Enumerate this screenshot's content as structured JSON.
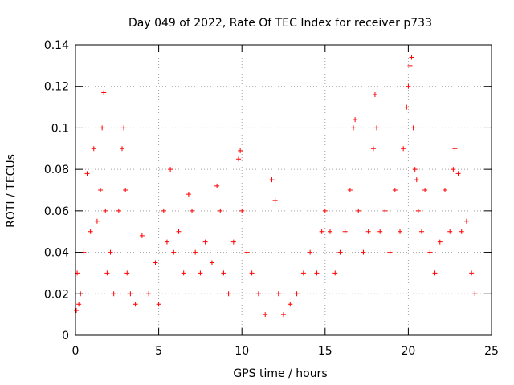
{
  "chart_data": {
    "type": "scatter",
    "title": "Day 049 of 2022, Rate Of TEC Index for receiver p733",
    "xlabel": "GPS time / hours",
    "ylabel": "ROTI / TECUs",
    "xlim": [
      0,
      25
    ],
    "ylim": [
      0,
      0.14
    ],
    "xticks": [
      0,
      5,
      10,
      15,
      20,
      25
    ],
    "xtick_labels": [
      "0",
      "5",
      "10",
      "15",
      "20",
      "25"
    ],
    "yticks": [
      0,
      0.02,
      0.04,
      0.06,
      0.08,
      0.1,
      0.12,
      0.14
    ],
    "ytick_labels": [
      "0",
      "0.02",
      "0.04",
      "0.06",
      "0.08",
      "0.1",
      "0.12",
      "0.14"
    ],
    "grid": true,
    "marker": "+",
    "color": "#ff0000",
    "series": [
      {
        "x": [
          0.05,
          0.1,
          0.2,
          0.3,
          0.5,
          0.7,
          0.9,
          1.1,
          1.3,
          1.5,
          1.6,
          1.7,
          1.8,
          1.9,
          2.1,
          2.3,
          2.6,
          2.8,
          2.9,
          3.0,
          3.1,
          3.3,
          3.6,
          4.0,
          4.4,
          4.8,
          5.0,
          5.3,
          5.5,
          5.7,
          5.9,
          6.2,
          6.5,
          6.8,
          7.0,
          7.2,
          7.5,
          7.8,
          8.2,
          8.5,
          8.7,
          8.9,
          9.2,
          9.5,
          9.8,
          9.9,
          10.0,
          10.3,
          10.6,
          11.0,
          11.4,
          11.8,
          12.0,
          12.2,
          12.5,
          12.9,
          13.3,
          13.7,
          14.1,
          14.5,
          14.8,
          15.0,
          15.3,
          15.6,
          15.9,
          16.2,
          16.5,
          16.7,
          16.8,
          17.0,
          17.3,
          17.6,
          17.9,
          18.0,
          18.1,
          18.3,
          18.6,
          18.9,
          19.2,
          19.5,
          19.7,
          19.9,
          20.0,
          20.1,
          20.2,
          20.3,
          20.4,
          20.5,
          20.6,
          20.8,
          21.0,
          21.3,
          21.6,
          21.9,
          22.2,
          22.5,
          22.7,
          22.8,
          23.0,
          23.2,
          23.5,
          23.8,
          24.0
        ],
        "y": [
          0.012,
          0.03,
          0.015,
          0.02,
          0.04,
          0.078,
          0.05,
          0.09,
          0.055,
          0.07,
          0.1,
          0.117,
          0.06,
          0.03,
          0.04,
          0.02,
          0.06,
          0.09,
          0.1,
          0.07,
          0.03,
          0.02,
          0.015,
          0.048,
          0.02,
          0.035,
          0.015,
          0.06,
          0.045,
          0.08,
          0.04,
          0.05,
          0.03,
          0.068,
          0.06,
          0.04,
          0.03,
          0.045,
          0.035,
          0.072,
          0.06,
          0.03,
          0.02,
          0.045,
          0.085,
          0.089,
          0.06,
          0.04,
          0.03,
          0.02,
          0.01,
          0.075,
          0.065,
          0.02,
          0.01,
          0.015,
          0.02,
          0.03,
          0.04,
          0.03,
          0.05,
          0.06,
          0.05,
          0.03,
          0.04,
          0.05,
          0.07,
          0.1,
          0.104,
          0.06,
          0.04,
          0.05,
          0.09,
          0.116,
          0.1,
          0.05,
          0.06,
          0.04,
          0.07,
          0.05,
          0.09,
          0.11,
          0.12,
          0.13,
          0.134,
          0.1,
          0.08,
          0.075,
          0.06,
          0.05,
          0.07,
          0.04,
          0.03,
          0.045,
          0.07,
          0.05,
          0.08,
          0.09,
          0.078,
          0.05,
          0.055,
          0.03,
          0.02
        ]
      }
    ]
  }
}
